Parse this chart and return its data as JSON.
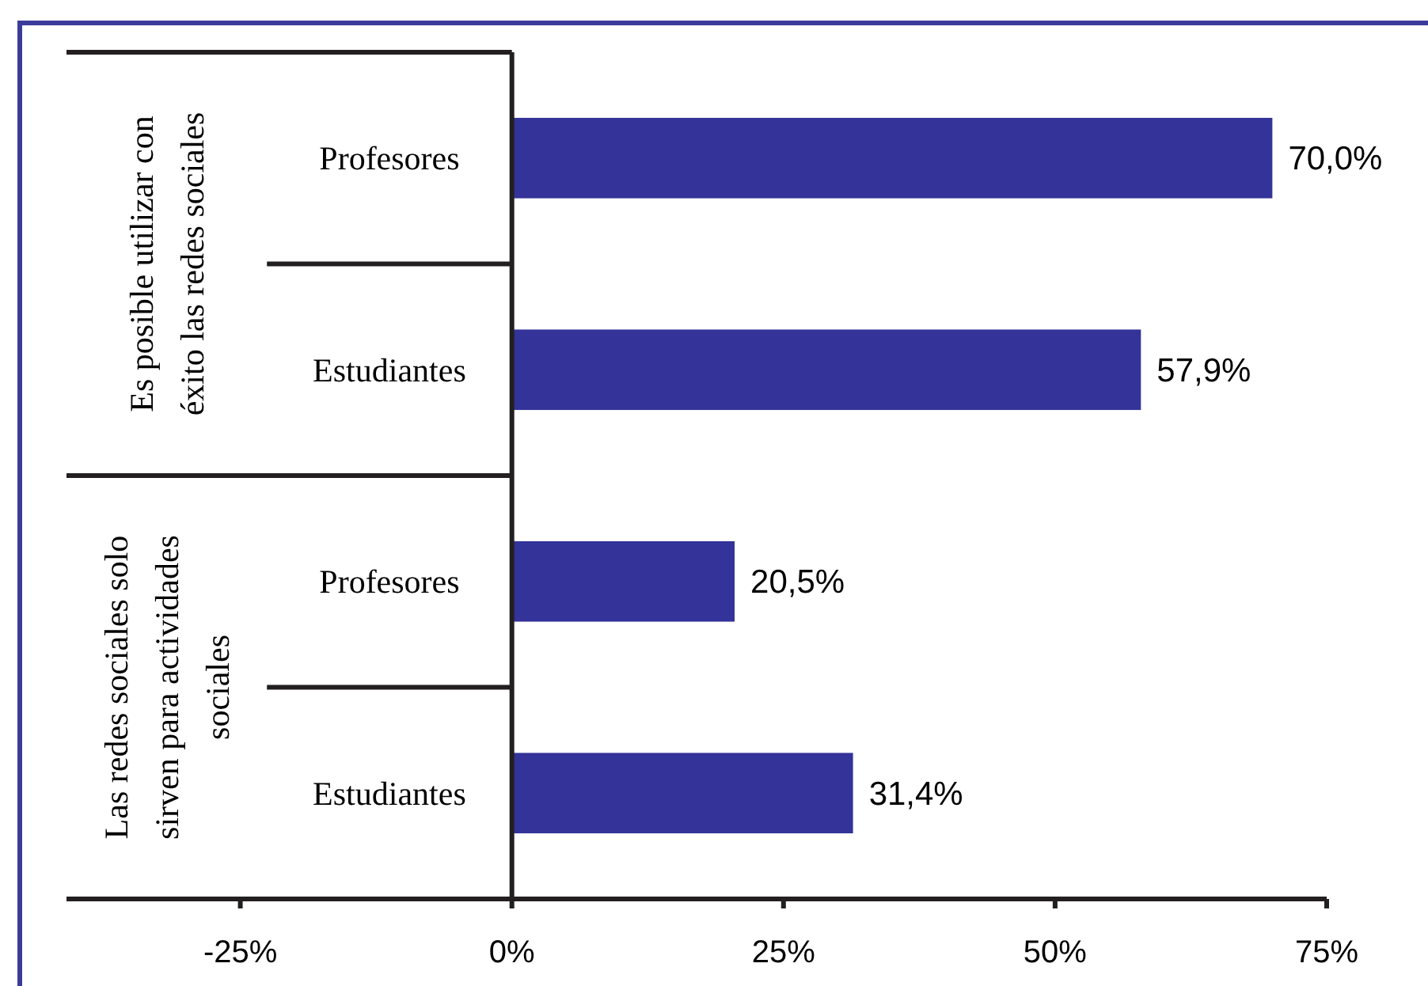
{
  "chart_data": {
    "type": "bar",
    "orientation": "horizontal",
    "categories": [
      "Profesores",
      "Estudiantes",
      "Profesores",
      "Estudiantes"
    ],
    "values": [
      70.0,
      57.9,
      20.5,
      31.4
    ],
    "value_labels": [
      "70,0%",
      "57,9%",
      "20,5%",
      "31,4%"
    ],
    "color": "#333399",
    "xlim": [
      -41,
      75
    ],
    "xticks": [
      {
        "value": -25,
        "label": "-25%"
      },
      {
        "value": 0,
        "label": "0%"
      },
      {
        "value": 25,
        "label": "25%"
      },
      {
        "value": 50,
        "label": "50%"
      },
      {
        "value": 75,
        "label": "75%"
      }
    ],
    "annotations": [
      "Es posible utilizar con éxito las redes sociales",
      "Las redes sociales solo sirven para actividades sociales"
    ]
  }
}
